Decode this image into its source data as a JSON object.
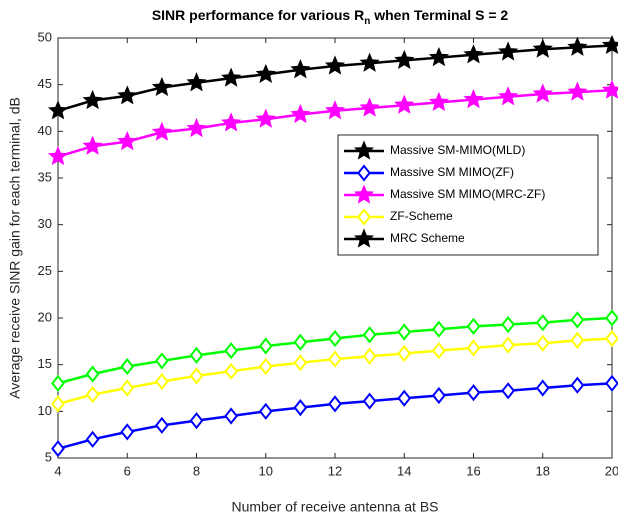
{
  "chart_data": {
    "type": "line",
    "title": [
      "SINR performance for various R",
      "n",
      " when Terminal S = 2"
    ],
    "xlabel": "Number of receive antenna at BS",
    "ylabel": "Average receive SINR gain for each terminal, dB",
    "x": [
      4,
      5,
      6,
      7,
      8,
      9,
      10,
      11,
      12,
      13,
      14,
      15,
      16,
      17,
      18,
      19,
      20
    ],
    "xlim": [
      4,
      20
    ],
    "xticks": [
      4,
      6,
      8,
      10,
      12,
      14,
      16,
      18,
      20
    ],
    "ylim": [
      5,
      50
    ],
    "yticks": [
      5,
      10,
      15,
      20,
      25,
      30,
      35,
      40,
      45,
      50
    ],
    "grid": false,
    "legend": "upper right",
    "series": [
      {
        "name": "Massive SM-MIMO(MLD)",
        "color": "#000000",
        "marker": "star",
        "values": [
          42.2,
          43.3,
          43.8,
          44.7,
          45.2,
          45.7,
          46.1,
          46.6,
          47.0,
          47.3,
          47.6,
          47.9,
          48.2,
          48.5,
          48.8,
          49.0,
          49.2
        ]
      },
      {
        "name": "Massive SM MIMO(ZF)",
        "color": "#0000ff",
        "marker": "diamond",
        "values": [
          6.0,
          7.0,
          7.8,
          8.5,
          9.0,
          9.5,
          10.0,
          10.4,
          10.8,
          11.1,
          11.4,
          11.7,
          12.0,
          12.2,
          12.5,
          12.8,
          13.0
        ]
      },
      {
        "name": "Massive SM MIMO(MRC-ZF)",
        "color": "#ff00ff",
        "marker": "star",
        "values": [
          37.3,
          38.4,
          38.9,
          39.9,
          40.3,
          40.9,
          41.3,
          41.8,
          42.2,
          42.5,
          42.8,
          43.1,
          43.4,
          43.7,
          44.0,
          44.2,
          44.4
        ]
      },
      {
        "name": "ZF-Scheme",
        "color": "#ffff00",
        "marker": "diamond",
        "values": [
          10.8,
          11.8,
          12.5,
          13.2,
          13.8,
          14.3,
          14.8,
          15.2,
          15.6,
          15.9,
          16.2,
          16.5,
          16.8,
          17.1,
          17.3,
          17.6,
          17.8
        ]
      },
      {
        "name": "MRC Scheme",
        "color": "#00ff00",
        "legend_color": "#000000",
        "marker": "diamond",
        "legend_marker": "star",
        "values": [
          13.0,
          14.0,
          14.8,
          15.4,
          16.0,
          16.5,
          17.0,
          17.4,
          17.8,
          18.2,
          18.5,
          18.8,
          19.1,
          19.3,
          19.5,
          19.8,
          20.0
        ]
      }
    ]
  }
}
